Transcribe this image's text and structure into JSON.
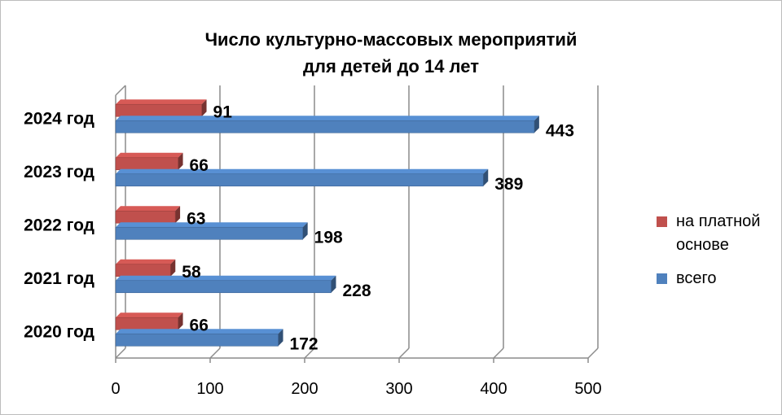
{
  "chart_data": {
    "type": "bar",
    "orientation": "horizontal",
    "title_lines": [
      "Число культурно-массовых мероприятий",
      "для детей до 14 лет"
    ],
    "categories": [
      "2020 год",
      "2021 год",
      "2022 год",
      "2023 год",
      "2024 год"
    ],
    "series": [
      {
        "name": "на платной основе",
        "color": "#c0504d",
        "values": [
          66,
          58,
          63,
          66,
          91
        ]
      },
      {
        "name": "всего",
        "color": "#4f81bd",
        "values": [
          172,
          228,
          198,
          389,
          443
        ]
      }
    ],
    "xlim": [
      0,
      500
    ],
    "xticks": [
      "0",
      "100",
      "200",
      "300",
      "400",
      "500"
    ],
    "grid": true,
    "legend_position": "right",
    "style": "3d"
  }
}
